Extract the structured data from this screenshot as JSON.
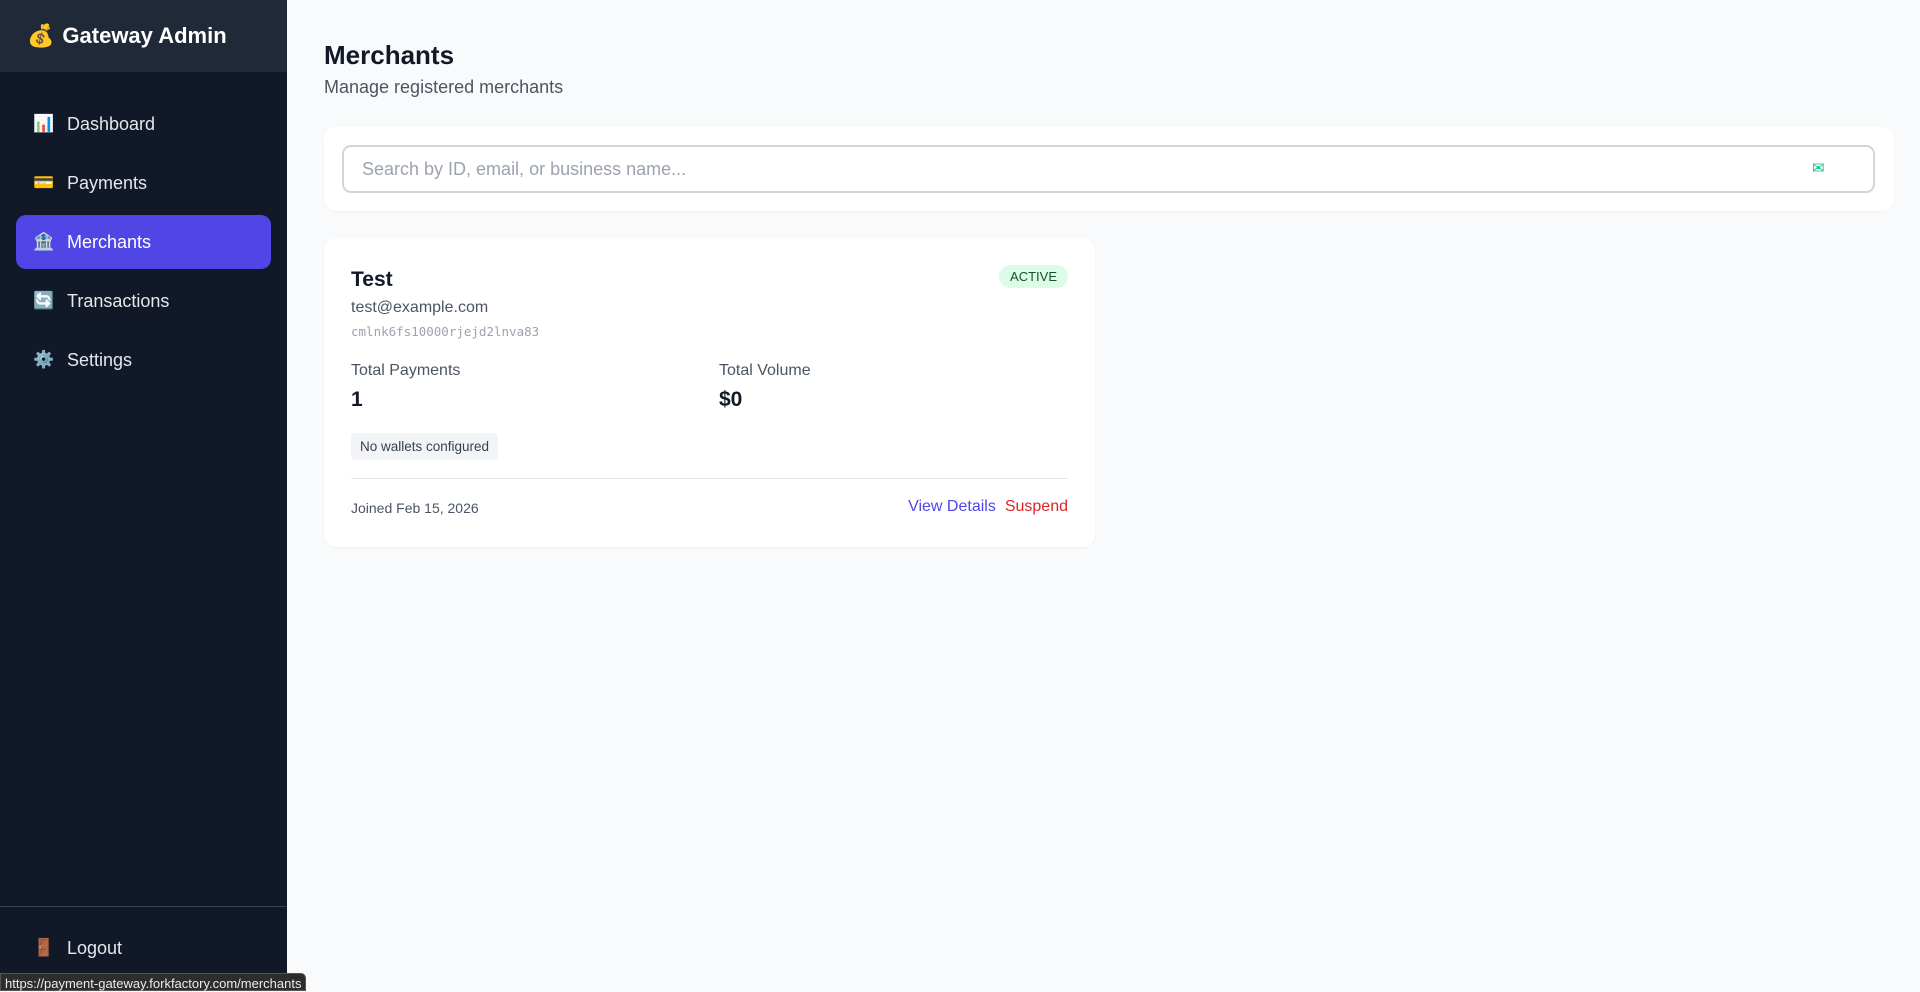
{
  "sidebar": {
    "brand_icon": "money-bag",
    "brand": "Gateway Admin",
    "items": [
      {
        "label": "Dashboard",
        "icon": "📊"
      },
      {
        "label": "Payments",
        "icon": "💳"
      },
      {
        "label": "Merchants",
        "icon": "🏦",
        "active": true
      },
      {
        "label": "Transactions",
        "icon": "🔄"
      },
      {
        "label": "Settings",
        "icon": "⚙️"
      }
    ],
    "logout": {
      "label": "Logout",
      "icon": "🚪"
    }
  },
  "page": {
    "title": "Merchants",
    "subtitle": "Manage registered merchants"
  },
  "search": {
    "placeholder": "Search by ID, email, or business name...",
    "value": "",
    "icon": "envelope"
  },
  "merchants": [
    {
      "name": "Test",
      "status": "ACTIVE",
      "email": "test@example.com",
      "id": "cmlnk6fs10000rjejd2lnva83",
      "total_payments_label": "Total Payments",
      "total_payments": "1",
      "total_volume_label": "Total Volume",
      "total_volume": "$0",
      "wallets": "No wallets configured",
      "joined": "Joined Feb 15, 2026",
      "view_label": "View Details",
      "suspend_label": "Suspend"
    }
  ],
  "colors": {
    "accent": "#4f46e5",
    "danger": "#dc2626",
    "link": "#4f46e5",
    "active_badge": "#dcfce7"
  },
  "status_bar": "https://payment-gateway.forkfactory.com/merchants"
}
